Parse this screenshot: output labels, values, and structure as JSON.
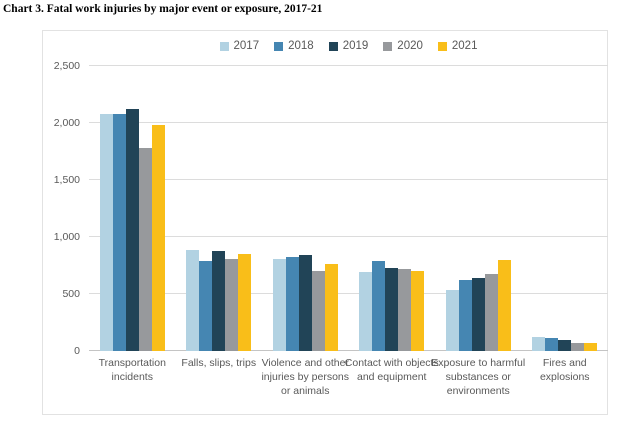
{
  "title": "Chart 3. Fatal work injuries by major event or exposure, 2017-21",
  "colors": {
    "grid": "#dcdcdc",
    "axis_line": "#c4c4c4",
    "text_muted": "#595959",
    "background": "#ffffff"
  },
  "chart_data": {
    "type": "bar",
    "title": "Chart 3. Fatal work injuries by major event or exposure, 2017-21",
    "xlabel": "",
    "ylabel": "",
    "grid": true,
    "legend_position": "top",
    "ylim": [
      0,
      2500
    ],
    "yticks": [
      {
        "value": 0,
        "label": "0"
      },
      {
        "value": 500,
        "label": "500"
      },
      {
        "value": 1000,
        "label": "1,000"
      },
      {
        "value": 1500,
        "label": "1,500"
      },
      {
        "value": 2000,
        "label": "2,000"
      },
      {
        "value": 2500,
        "label": "2,500"
      }
    ],
    "categories": [
      "Transportation incidents",
      "Falls, slips, trips",
      "Violence and other injuries by persons or animals",
      "Contact with objects and equipment",
      "Exposure to harmful substances or environments",
      "Fires and explosions"
    ],
    "series": [
      {
        "name": "2017",
        "color": "#b2d2e2",
        "values": [
          2077,
          887,
          807,
          695,
          531,
          123
        ]
      },
      {
        "name": "2018",
        "color": "#4586b2",
        "values": [
          2080,
          791,
          828,
          786,
          621,
          115
        ]
      },
      {
        "name": "2019",
        "color": "#214457",
        "values": [
          2122,
          880,
          841,
          732,
          642,
          99
        ]
      },
      {
        "name": "2020",
        "color": "#97999c",
        "values": [
          1778,
          805,
          705,
          716,
          672,
          72
        ]
      },
      {
        "name": "2021",
        "color": "#f9be19",
        "values": [
          1982,
          850,
          761,
          705,
          798,
          71
        ]
      }
    ]
  }
}
